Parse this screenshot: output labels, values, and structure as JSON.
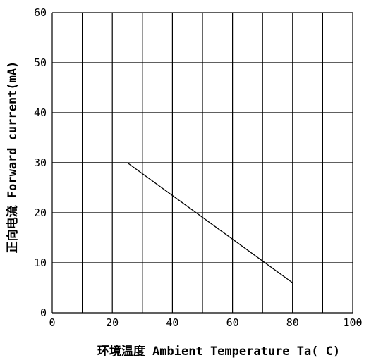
{
  "chart_data": {
    "type": "line",
    "xlabel": "环境温度  Ambient Temperature Ta( C)",
    "xlabel_degree": "°",
    "ylabel": "正向电流  Forward current(mA)",
    "xlim": [
      0,
      100
    ],
    "ylim": [
      0,
      60
    ],
    "x_ticks": [
      0,
      20,
      40,
      60,
      80,
      100
    ],
    "y_ticks": [
      0,
      10,
      20,
      30,
      40,
      50,
      60
    ],
    "grid": true,
    "series": [
      {
        "x": [
          0,
          25,
          80,
          80
        ],
        "y": [
          30,
          30,
          6,
          0
        ],
        "color": "#000000"
      }
    ]
  }
}
